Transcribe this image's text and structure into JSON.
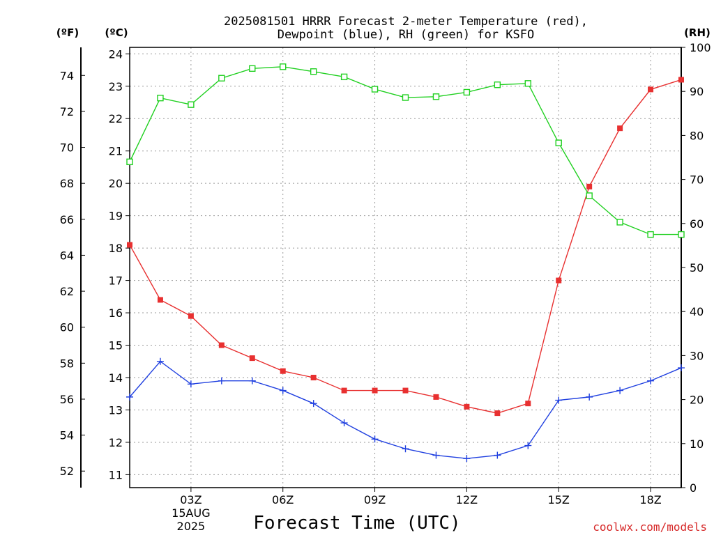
{
  "chart_data": {
    "type": "line",
    "title_lines": [
      "2025081501 HRRR Forecast 2-meter Temperature (red),",
      "Dewpoint (blue), RH (green) for KSFO"
    ],
    "xlabel": "Forecast Time (UTC)",
    "x_hours": [
      1,
      2,
      3,
      4,
      5,
      6,
      7,
      8,
      9,
      10,
      11,
      12,
      13,
      14,
      15,
      16,
      17,
      18,
      19
    ],
    "x_ticks": [
      {
        "hour": 3,
        "label": "03Z",
        "sub1": "15AUG",
        "sub2": "2025"
      },
      {
        "hour": 6,
        "label": "06Z"
      },
      {
        "hour": 9,
        "label": "09Z"
      },
      {
        "hour": 12,
        "label": "12Z"
      },
      {
        "hour": 15,
        "label": "15Z"
      },
      {
        "hour": 18,
        "label": "18Z"
      }
    ],
    "x_range": [
      1,
      19
    ],
    "axis_c": {
      "unit": "(ºC)",
      "range": [
        10.6,
        24.2
      ],
      "ticks": [
        11,
        12,
        13,
        14,
        15,
        16,
        17,
        18,
        19,
        20,
        21,
        22,
        23,
        24
      ]
    },
    "axis_f": {
      "unit": "(ºF)",
      "ticks": [
        52,
        54,
        56,
        58,
        60,
        62,
        64,
        66,
        68,
        70,
        72,
        74
      ]
    },
    "axis_rh": {
      "unit": "(RH)",
      "range": [
        0,
        100
      ],
      "ticks": [
        0,
        10,
        20,
        30,
        40,
        50,
        60,
        70,
        80,
        90,
        100
      ]
    },
    "series": [
      {
        "name": "Temperature",
        "axis": "c",
        "color": "#e83030",
        "marker": "filled-square",
        "values": [
          18.1,
          16.4,
          15.9,
          15.0,
          14.6,
          14.2,
          14.0,
          13.6,
          13.6,
          13.6,
          13.4,
          13.1,
          12.9,
          13.2,
          17.0,
          19.9,
          21.7,
          22.9,
          23.2
        ]
      },
      {
        "name": "Dewpoint",
        "axis": "c",
        "color": "#2040e0",
        "marker": "plus",
        "values": [
          13.4,
          14.5,
          13.8,
          13.9,
          13.9,
          13.6,
          13.2,
          12.6,
          12.1,
          11.8,
          11.6,
          11.5,
          11.6,
          11.9,
          13.3,
          13.4,
          13.6,
          13.9,
          14.3
        ]
      },
      {
        "name": "RH",
        "axis": "rh",
        "color": "#20d020",
        "marker": "open-square",
        "values": [
          74,
          88.5,
          87,
          93,
          95.2,
          95.6,
          94.5,
          93.3,
          90.5,
          88.6,
          88.8,
          89.8,
          91.5,
          91.8,
          78.3,
          66.3,
          60.3,
          57.5,
          57.5
        ]
      }
    ]
  },
  "credit": "coolwx.com/models"
}
